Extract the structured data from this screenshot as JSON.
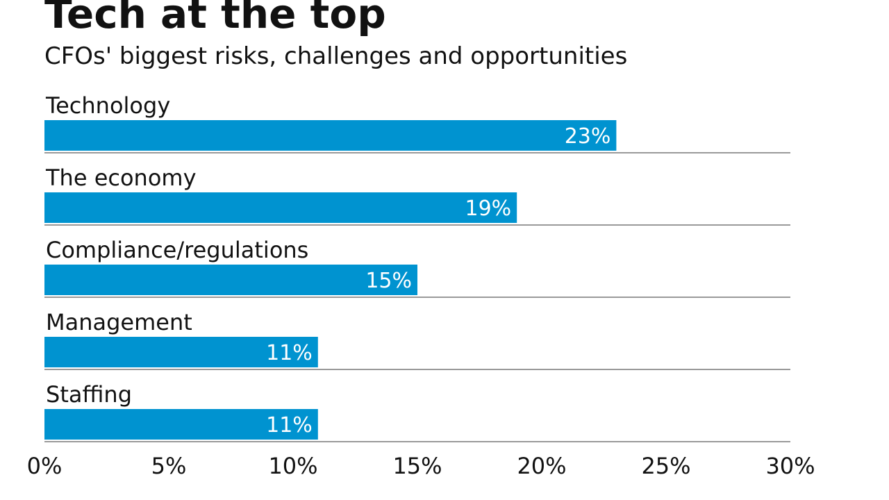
{
  "chart_data": {
    "type": "hbar",
    "title": "Tech at the top",
    "subtitle": "CFOs' biggest risks, challenges and opportunities",
    "categories": [
      "Technology",
      "The economy",
      "Compliance/regulations",
      "Management",
      "Staffing"
    ],
    "values": [
      23,
      19,
      15,
      11,
      11
    ],
    "value_labels": [
      "23%",
      "19%",
      "15%",
      "11%",
      "11%"
    ],
    "color": "#0093d0",
    "xlim": [
      0,
      30
    ],
    "xticks": [
      {
        "value": 0,
        "label": "0%"
      },
      {
        "value": 5,
        "label": "5%"
      },
      {
        "value": 10,
        "label": "10%"
      },
      {
        "value": 15,
        "label": "15%"
      },
      {
        "value": 20,
        "label": "20%"
      },
      {
        "value": 25,
        "label": "25%"
      },
      {
        "value": 30,
        "label": "30%"
      }
    ]
  }
}
